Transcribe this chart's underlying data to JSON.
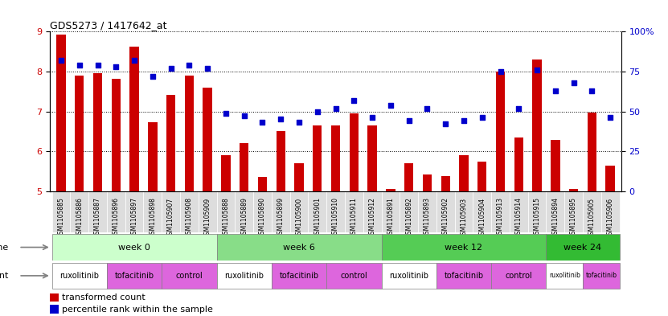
{
  "title": "GDS5273 / 1417642_at",
  "samples": [
    "GSM1105885",
    "GSM1105886",
    "GSM1105887",
    "GSM1105896",
    "GSM1105897",
    "GSM1105898",
    "GSM1105907",
    "GSM1105908",
    "GSM1105909",
    "GSM1105888",
    "GSM1105889",
    "GSM1105890",
    "GSM1105899",
    "GSM1105900",
    "GSM1105901",
    "GSM1105910",
    "GSM1105911",
    "GSM1105912",
    "GSM1105891",
    "GSM1105892",
    "GSM1105893",
    "GSM1105902",
    "GSM1105903",
    "GSM1105904",
    "GSM1105913",
    "GSM1105914",
    "GSM1105915",
    "GSM1105894",
    "GSM1105895",
    "GSM1105905",
    "GSM1105906"
  ],
  "bar_values": [
    8.93,
    7.9,
    7.95,
    7.82,
    8.62,
    6.72,
    7.42,
    7.9,
    7.6,
    5.9,
    6.2,
    5.35,
    6.5,
    5.7,
    6.65,
    6.65,
    6.95,
    6.65,
    5.05,
    5.7,
    5.42,
    5.38,
    5.9,
    5.75,
    8.0,
    6.35,
    8.3,
    6.28,
    5.05,
    6.97,
    5.65
  ],
  "dot_values": [
    82,
    79,
    79,
    78,
    82,
    72,
    77,
    79,
    77,
    49,
    47,
    43,
    45,
    43,
    50,
    52,
    57,
    46,
    54,
    44,
    52,
    42,
    44,
    46,
    75,
    52,
    76,
    63,
    68,
    63,
    46
  ],
  "bar_color": "#cc0000",
  "dot_color": "#0000cc",
  "ylim_left": [
    5,
    9
  ],
  "ylim_right": [
    0,
    100
  ],
  "yticks_left": [
    5,
    6,
    7,
    8,
    9
  ],
  "yticks_right": [
    0,
    25,
    50,
    75,
    100
  ],
  "ylabel_right_labels": [
    "0",
    "25",
    "50",
    "75",
    "100%"
  ],
  "group_colors": [
    "#ccffcc",
    "#88dd88",
    "#55cc55",
    "#33bb33"
  ],
  "groups": [
    {
      "label": "week 0",
      "start": 0,
      "end": 9
    },
    {
      "label": "week 6",
      "start": 9,
      "end": 18
    },
    {
      "label": "week 12",
      "start": 18,
      "end": 27
    },
    {
      "label": "week 24",
      "start": 27,
      "end": 31
    }
  ],
  "agents": [
    {
      "label": "ruxolitinib",
      "start": 0,
      "end": 3
    },
    {
      "label": "tofacitinib",
      "start": 3,
      "end": 6
    },
    {
      "label": "control",
      "start": 6,
      "end": 9
    },
    {
      "label": "ruxolitinib",
      "start": 9,
      "end": 12
    },
    {
      "label": "tofacitinib",
      "start": 12,
      "end": 15
    },
    {
      "label": "control",
      "start": 15,
      "end": 18
    },
    {
      "label": "ruxolitinib",
      "start": 18,
      "end": 21
    },
    {
      "label": "tofacitinib",
      "start": 21,
      "end": 24
    },
    {
      "label": "control",
      "start": 24,
      "end": 27
    },
    {
      "label": "ruxolitinib",
      "start": 27,
      "end": 29
    },
    {
      "label": "tofacitinib",
      "start": 29,
      "end": 31
    }
  ],
  "agent_colors": {
    "ruxolitinib": "#ffffff",
    "tofacitinib": "#dd66dd",
    "control": "#dd66dd"
  },
  "sample_bg": "#dddddd",
  "legend_transformed": "transformed count",
  "legend_percentile": "percentile rank within the sample"
}
